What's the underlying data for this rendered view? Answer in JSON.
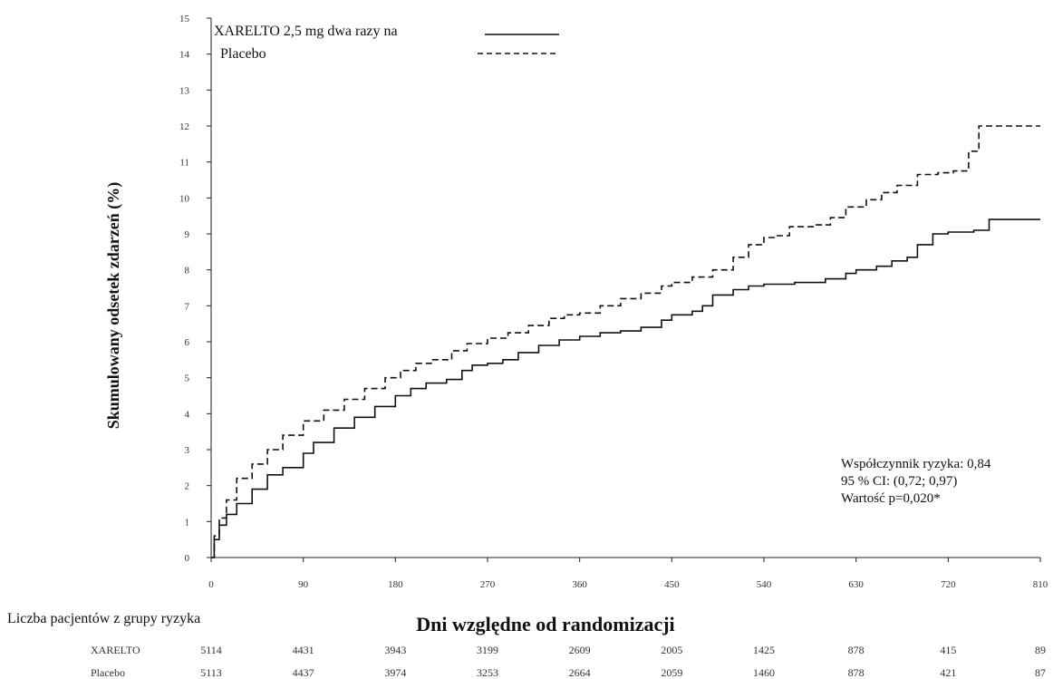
{
  "chart_data": {
    "type": "line",
    "title": "",
    "xlabel": "Dni względne od randomizacji",
    "ylabel": "Skumulowany odsetek zdarzeń (%)",
    "xlim": [
      0,
      810
    ],
    "ylim": [
      0,
      15
    ],
    "x_ticks": [
      0,
      90,
      180,
      270,
      360,
      450,
      540,
      630,
      720,
      810
    ],
    "y_ticks": [
      0,
      1,
      2,
      3,
      4,
      5,
      6,
      7,
      8,
      9,
      10,
      11,
      12,
      13,
      14,
      15
    ],
    "grid": false,
    "legend_position": "top-left",
    "series": [
      {
        "name": "XARELTO 2,5 mg dwa razy na",
        "style": "solid",
        "color": "#111111",
        "points": [
          [
            0,
            0
          ],
          [
            3,
            0.5
          ],
          [
            8,
            0.9
          ],
          [
            15,
            1.2
          ],
          [
            25,
            1.5
          ],
          [
            40,
            1.9
          ],
          [
            55,
            2.3
          ],
          [
            70,
            2.5
          ],
          [
            90,
            2.9
          ],
          [
            100,
            3.2
          ],
          [
            120,
            3.6
          ],
          [
            140,
            3.9
          ],
          [
            160,
            4.2
          ],
          [
            180,
            4.5
          ],
          [
            195,
            4.7
          ],
          [
            210,
            4.85
          ],
          [
            230,
            4.95
          ],
          [
            245,
            5.2
          ],
          [
            255,
            5.35
          ],
          [
            270,
            5.4
          ],
          [
            285,
            5.5
          ],
          [
            300,
            5.7
          ],
          [
            320,
            5.9
          ],
          [
            340,
            6.05
          ],
          [
            360,
            6.15
          ],
          [
            380,
            6.25
          ],
          [
            400,
            6.3
          ],
          [
            420,
            6.4
          ],
          [
            440,
            6.6
          ],
          [
            450,
            6.75
          ],
          [
            470,
            6.85
          ],
          [
            480,
            7.0
          ],
          [
            490,
            7.3
          ],
          [
            510,
            7.45
          ],
          [
            525,
            7.55
          ],
          [
            540,
            7.6
          ],
          [
            570,
            7.65
          ],
          [
            600,
            7.75
          ],
          [
            620,
            7.9
          ],
          [
            630,
            8.0
          ],
          [
            650,
            8.1
          ],
          [
            665,
            8.25
          ],
          [
            680,
            8.35
          ],
          [
            690,
            8.7
          ],
          [
            705,
            9.0
          ],
          [
            720,
            9.05
          ],
          [
            745,
            9.1
          ],
          [
            760,
            9.4
          ],
          [
            810,
            9.4
          ]
        ]
      },
      {
        "name": "Placebo",
        "style": "dashed",
        "color": "#111111",
        "points": [
          [
            0,
            0
          ],
          [
            3,
            0.6
          ],
          [
            8,
            1.1
          ],
          [
            15,
            1.6
          ],
          [
            25,
            2.2
          ],
          [
            40,
            2.6
          ],
          [
            55,
            3.0
          ],
          [
            70,
            3.4
          ],
          [
            90,
            3.8
          ],
          [
            110,
            4.1
          ],
          [
            130,
            4.4
          ],
          [
            150,
            4.7
          ],
          [
            170,
            5.0
          ],
          [
            185,
            5.2
          ],
          [
            200,
            5.4
          ],
          [
            215,
            5.5
          ],
          [
            235,
            5.75
          ],
          [
            250,
            5.95
          ],
          [
            270,
            6.1
          ],
          [
            290,
            6.25
          ],
          [
            310,
            6.45
          ],
          [
            330,
            6.65
          ],
          [
            345,
            6.75
          ],
          [
            360,
            6.8
          ],
          [
            380,
            7.0
          ],
          [
            400,
            7.2
          ],
          [
            420,
            7.35
          ],
          [
            440,
            7.55
          ],
          [
            450,
            7.65
          ],
          [
            470,
            7.8
          ],
          [
            490,
            8.0
          ],
          [
            510,
            8.35
          ],
          [
            525,
            8.7
          ],
          [
            540,
            8.9
          ],
          [
            550,
            8.95
          ],
          [
            565,
            9.2
          ],
          [
            590,
            9.25
          ],
          [
            605,
            9.45
          ],
          [
            620,
            9.75
          ],
          [
            640,
            9.95
          ],
          [
            655,
            10.15
          ],
          [
            670,
            10.35
          ],
          [
            690,
            10.65
          ],
          [
            710,
            10.7
          ],
          [
            725,
            10.75
          ],
          [
            740,
            11.3
          ],
          [
            750,
            12.0
          ],
          [
            810,
            12.0
          ]
        ]
      }
    ],
    "annotations": [
      "Współczynnik ryzyka: 0,84",
      "95 % CI: (0,72; 0,97)",
      "Wartość p=0,020*"
    ],
    "risk_table": {
      "title": "Liczba pacjentów z grupy ryzyka",
      "rows": [
        {
          "label": "XARELTO",
          "values": [
            "5114",
            "4431",
            "3943",
            "3199",
            "2609",
            "2005",
            "1425",
            "878",
            "415",
            "89"
          ]
        },
        {
          "label": "Placebo",
          "values": [
            "5113",
            "4437",
            "3974",
            "3253",
            "2664",
            "2059",
            "1460",
            "878",
            "421",
            "87"
          ]
        }
      ]
    }
  }
}
